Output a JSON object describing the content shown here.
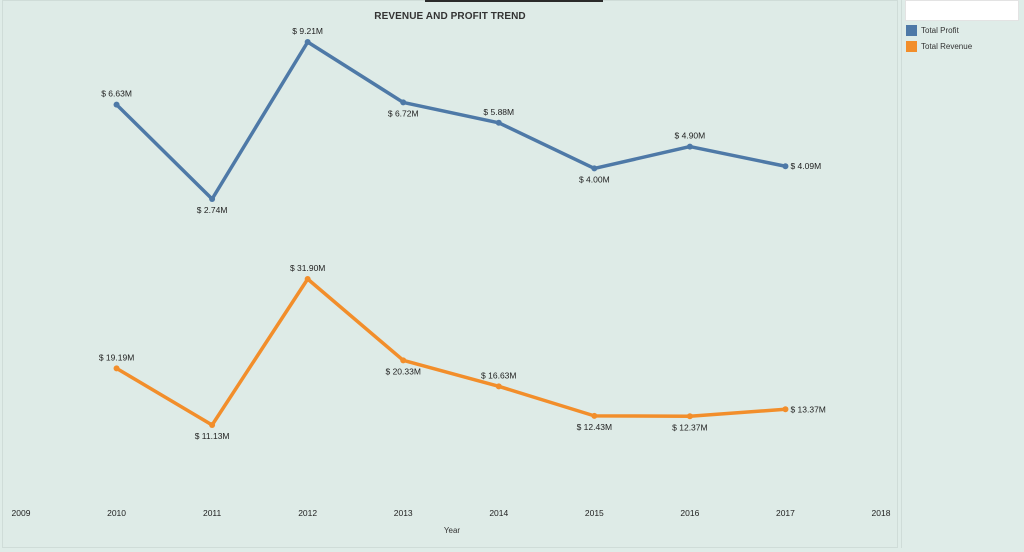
{
  "chart_data": {
    "type": "line",
    "title": "REVENUE AND PROFIT TREND",
    "xlabel": "Year",
    "x_ticks": [
      "2009",
      "2010",
      "2011",
      "2012",
      "2013",
      "2014",
      "2015",
      "2016",
      "2017",
      "2018"
    ],
    "x": [
      2010,
      2011,
      2012,
      2013,
      2014,
      2015,
      2016,
      2017
    ],
    "series": [
      {
        "name": "Total Profit",
        "color": "#4e79a7",
        "values": [
          6.63,
          2.74,
          9.21,
          6.72,
          5.88,
          4.0,
          4.9,
          4.09
        ],
        "labels": [
          "$ 6.63M",
          "$ 2.74M",
          "$ 9.21M",
          "$ 6.72M",
          "$ 5.88M",
          "$ 4.00M",
          "$ 4.90M",
          "$ 4.09M"
        ]
      },
      {
        "name": "Total Revenue",
        "color": "#f28e2b",
        "values": [
          19.19,
          11.13,
          31.9,
          20.33,
          16.63,
          12.43,
          12.37,
          13.37
        ],
        "labels": [
          "$ 19.19M",
          "$ 11.13M",
          "$ 31.90M",
          "$ 20.33M",
          "$ 16.63M",
          "$ 12.43M",
          "$ 12.37M",
          "$ 13.37M"
        ]
      }
    ],
    "grid": false,
    "legend": "right"
  },
  "legend": {
    "items": [
      {
        "label": "Total Profit",
        "color": "#4e79a7"
      },
      {
        "label": "Total Revenue",
        "color": "#f28e2b"
      }
    ]
  }
}
